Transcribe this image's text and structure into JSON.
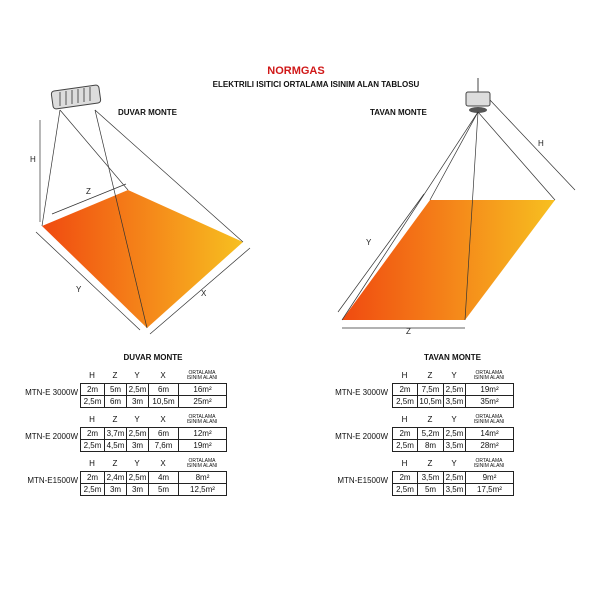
{
  "header": {
    "title": "NORMGAS",
    "subtitle": "ELEKTRILI ISITICI ORTALAMA ISINIM ALAN TABLOSU"
  },
  "diagrams": [
    {
      "title": "DUVAR MONTE",
      "labels": [
        "H",
        "Z",
        "Y",
        "X"
      ]
    },
    {
      "title": "TAVAN MONTE",
      "labels": [
        "Y",
        "Z",
        "H"
      ]
    }
  ],
  "tables": [
    {
      "title": "DUVAR MONTE",
      "columns": [
        "H",
        "Z",
        "Y",
        "X",
        "ORTALAMA ISINIM ALANI"
      ],
      "blocks": [
        {
          "model": "MTN-E 3000W",
          "rows": [
            [
              "2m",
              "5m",
              "2,5m",
              "6m",
              "16m²"
            ],
            [
              "2,5m",
              "6m",
              "3m",
              "10,5m",
              "25m²"
            ]
          ]
        },
        {
          "model": "MTN-E 2000W",
          "rows": [
            [
              "2m",
              "3,7m",
              "2,5m",
              "6m",
              "12m²"
            ],
            [
              "2,5m",
              "4,5m",
              "3m",
              "7,6m",
              "19m²"
            ]
          ]
        },
        {
          "model": "MTN-E1500W",
          "rows": [
            [
              "2m",
              "2,4m",
              "2,5m",
              "4m",
              "8m²"
            ],
            [
              "2,5m",
              "3m",
              "3m",
              "5m",
              "12,5m²"
            ]
          ]
        }
      ]
    },
    {
      "title": "TAVAN MONTE",
      "columns": [
        "H",
        "Z",
        "Y",
        "ORTALAMA ISINIM ALANI"
      ],
      "blocks": [
        {
          "model": "MTN-E 3000W",
          "rows": [
            [
              "2m",
              "7,5m",
              "2,5m",
              "19m²"
            ],
            [
              "2,5m",
              "10,5m",
              "3,5m",
              "35m²"
            ]
          ]
        },
        {
          "model": "MTN-E 2000W",
          "rows": [
            [
              "2m",
              "5,2m",
              "2,5m",
              "14m²"
            ],
            [
              "2,5m",
              "8m",
              "3,5m",
              "28m²"
            ]
          ]
        },
        {
          "model": "MTN-E1500W",
          "rows": [
            [
              "2m",
              "3,5m",
              "2,5m",
              "9m²"
            ],
            [
              "2,5m",
              "5m",
              "3,5m",
              "17,5m²"
            ]
          ]
        }
      ]
    }
  ]
}
